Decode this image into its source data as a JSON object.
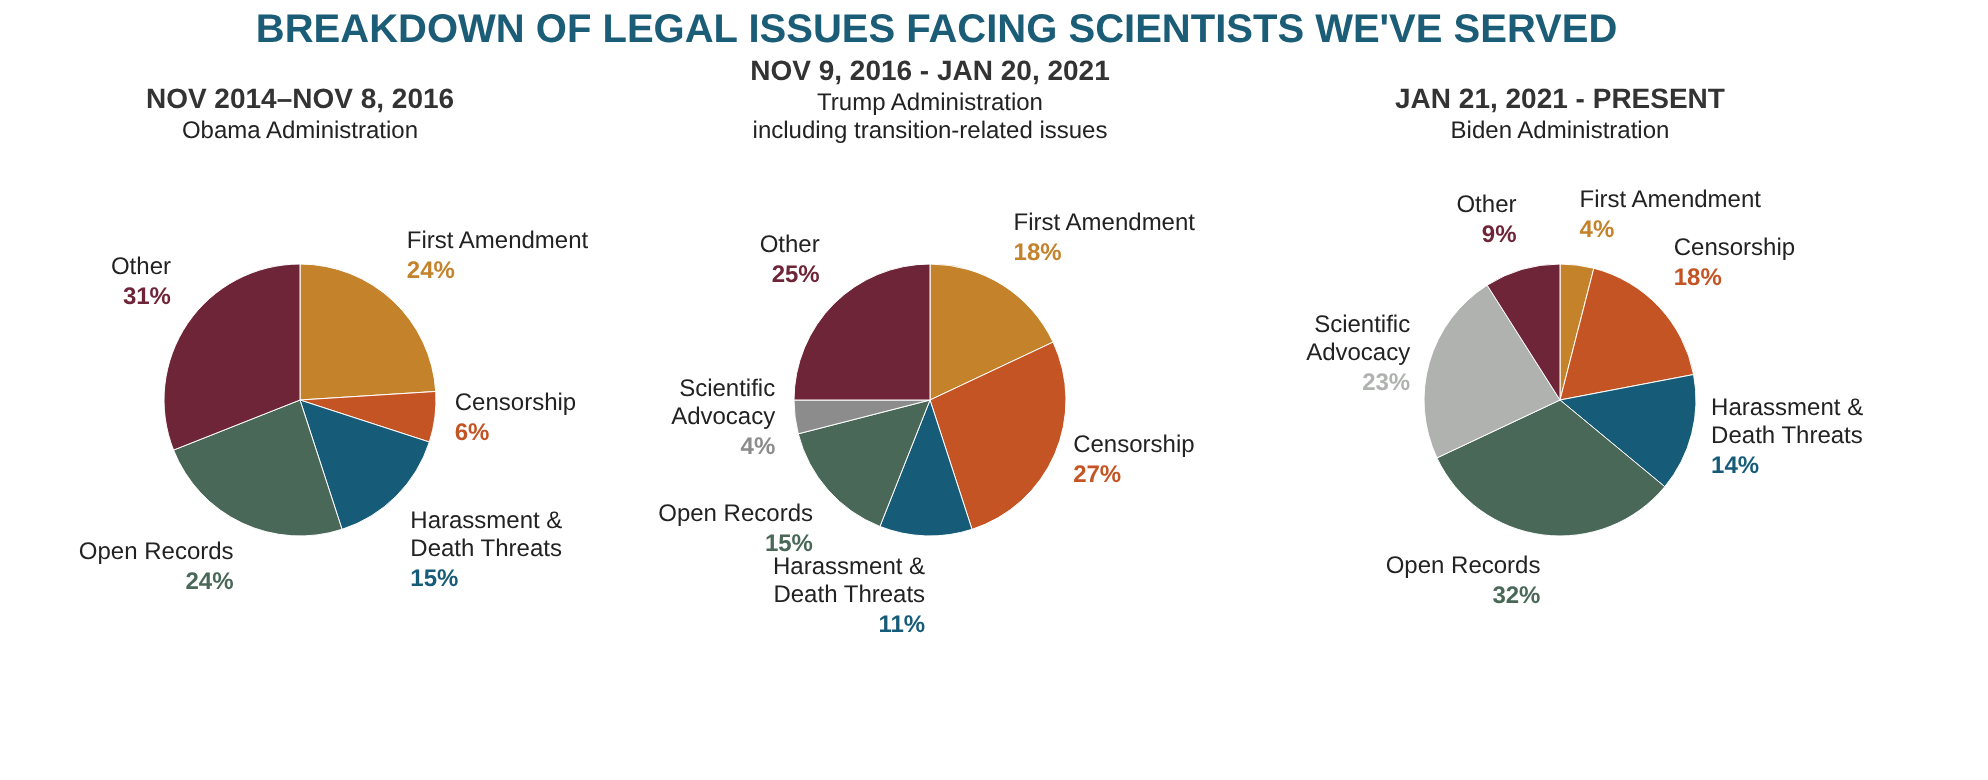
{
  "chart_data": [
    {
      "type": "pie",
      "title": "NOV 2014–NOV 8, 2016",
      "subtitle": "Obama Administration",
      "annotations": [
        "BREAKDOWN OF LEGAL ISSUES FACING SCIENTISTS WE'VE SERVED"
      ],
      "categories": [
        "First Amendment",
        "Censorship",
        "Harassment & Death Threats",
        "Open Records",
        "Other"
      ],
      "values": [
        24,
        6,
        15,
        24,
        31
      ],
      "value_labels": [
        "24%",
        "6%",
        "15%",
        "24%",
        "31%"
      ],
      "colors": [
        "#c4822b",
        "#c45423",
        "#165c78",
        "#4a6858",
        "#6e2538"
      ],
      "legend": false
    },
    {
      "type": "pie",
      "title": "NOV 9, 2016 - JAN 20, 2021",
      "subtitle": "Trump Administration",
      "annotations": [
        "including transition-related issues"
      ],
      "categories": [
        "First Amendment",
        "Censorship",
        "Harassment & Death Threats",
        "Open Records",
        "Scientific Advocacy",
        "Other"
      ],
      "values": [
        18,
        27,
        11,
        15,
        4,
        25
      ],
      "value_labels": [
        "18%",
        "27%",
        "11%",
        "15%",
        "4%",
        "25%"
      ],
      "colors": [
        "#c4822b",
        "#c45423",
        "#165c78",
        "#4a6858",
        "#8c8c8c",
        "#6e2538"
      ],
      "legend": false
    },
    {
      "type": "pie",
      "title": "JAN 21, 2021 - PRESENT",
      "subtitle": "Biden Administration",
      "categories": [
        "First Amendment",
        "Censorship",
        "Harassment & Death Threats",
        "Open Records",
        "Scientific Advocacy",
        "Other"
      ],
      "values": [
        4,
        18,
        14,
        32,
        23,
        9
      ],
      "value_labels": [
        "4%",
        "18%",
        "14%",
        "32%",
        "23%",
        "9%"
      ],
      "colors": [
        "#c4822b",
        "#c45423",
        "#165c78",
        "#4a6858",
        "#b0b2b0",
        "#6e2538"
      ],
      "legend": false
    }
  ]
}
